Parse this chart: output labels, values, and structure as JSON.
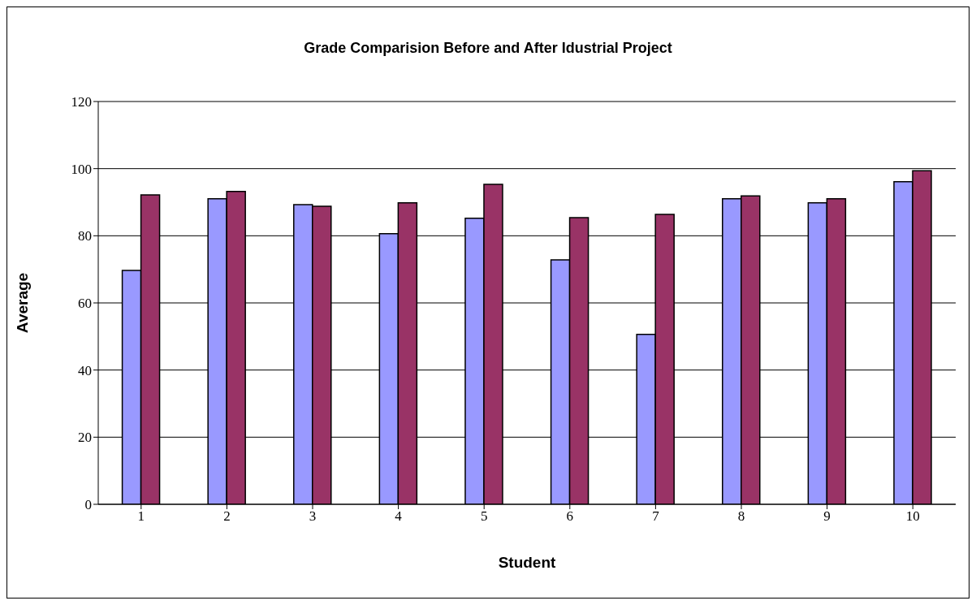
{
  "chart_data": {
    "type": "bar",
    "title": "Grade Comparision Before and After Idustrial Project",
    "xlabel": "Student",
    "ylabel": "Average",
    "categories": [
      "1",
      "2",
      "3",
      "4",
      "5",
      "6",
      "7",
      "8",
      "9",
      "10"
    ],
    "series": [
      {
        "color": "#9999ff",
        "values": [
          69.7,
          91,
          89.3,
          80.6,
          85.2,
          72.8,
          50.6,
          91,
          89.8,
          96.1
        ]
      },
      {
        "color": "#993366",
        "values": [
          92.2,
          93.2,
          88.8,
          89.8,
          95.3,
          85.4,
          86.4,
          91.9,
          91,
          99.4
        ]
      }
    ],
    "ylim": [
      0,
      120
    ],
    "yticks": [
      0,
      20,
      40,
      60,
      80,
      100,
      120
    ],
    "grid": "y",
    "legend": false
  }
}
